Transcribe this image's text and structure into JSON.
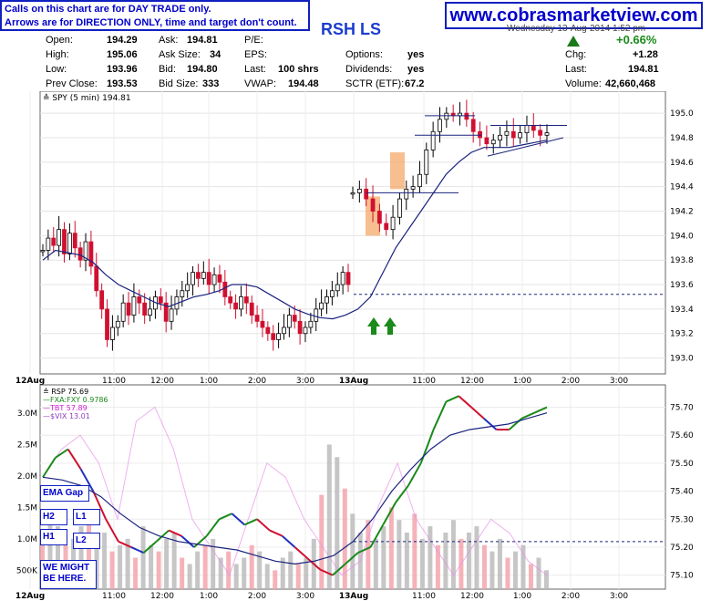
{
  "header": {
    "note_line1": "Calls on this chart are for DAY TRADE only.",
    "note_line2": "Arrows are for DIRECTION ONLY, time and target don't count.",
    "site": "www.cobrasmarketview.com",
    "ticker": "RSH LS",
    "datetime": "Wednesday 13-Aug-2014 1:52 pm"
  },
  "quote": {
    "open_label": "Open:",
    "open": "194.29",
    "high_label": "High:",
    "high": "195.06",
    "low_label": "Low:",
    "low": "193.96",
    "prev_label": "Prev Close:",
    "prev": "193.53",
    "ask_label": "Ask:",
    "ask": "194.81",
    "asksize_label": "Ask Size:",
    "asksize": "34",
    "bid_label": "Bid:",
    "bid": "194.80",
    "bidsize_label": "Bid Size:",
    "bidsize": "333",
    "pe_label": "P/E:",
    "eps_label": "EPS:",
    "last_label": "Last:",
    "last_shares": "100 shrs",
    "vwap_label": "VWAP:",
    "vwap": "194.48",
    "options_label": "Options:",
    "options": "yes",
    "dividends_label": "Dividends:",
    "dividends": "yes",
    "sctr_label": "SCTR (ETF):",
    "sctr": "67.2",
    "pct_change": "+0.66%",
    "chg_label": "Chg:",
    "chg": "+1.28",
    "lastp_label": "Last:",
    "lastp": "194.81",
    "volume_label": "Volume:",
    "volume": "42,660,468"
  },
  "annotations": {
    "ema_gap": "EMA Gap",
    "h2": "H2",
    "l1": "L1",
    "h1": "H1",
    "l2": "L2",
    "might": "WE MIGHT BE HERE."
  },
  "colors": {
    "up": "#1a8a1a",
    "down": "#d01030",
    "ma": "#1a237e",
    "orange": "#f4a460",
    "arrow": "#1a8a1a"
  },
  "chart_data": [
    {
      "type": "line",
      "title": "SPY (5 min) 194.81",
      "ylim": [
        192.9,
        195.15
      ],
      "yticks": [
        "195.0",
        "194.8",
        "194.6",
        "194.4",
        "194.2",
        "194.0",
        "193.8",
        "193.6",
        "193.4",
        "193.2",
        "193.0"
      ],
      "ytick_values": [
        195.0,
        194.8,
        194.6,
        194.4,
        194.2,
        194.0,
        193.8,
        193.6,
        193.4,
        193.2,
        193.0
      ],
      "xticks": [
        "12Aug",
        "11:00",
        "12:00",
        "1:00",
        "2:00",
        "3:00",
        "13Aug",
        "11:00",
        "12:00",
        "1:00",
        "2:00",
        "3:00"
      ],
      "series": [
        {
          "values": [
            193.88,
            193.98,
            193.92,
            194.05,
            193.85,
            194.02,
            193.9,
            193.8,
            193.95,
            193.75,
            193.55,
            193.4,
            193.15,
            193.25,
            193.3,
            193.45,
            193.35,
            193.5,
            193.45,
            193.35,
            193.4,
            193.5,
            193.45,
            193.3,
            193.4,
            193.5,
            193.55,
            193.6,
            193.7,
            193.65,
            193.7,
            193.6,
            193.68,
            193.62,
            193.5,
            193.45,
            193.4,
            193.5,
            193.45,
            193.35,
            193.3,
            193.25,
            193.2,
            193.15,
            193.2,
            193.25,
            193.35,
            193.3,
            193.2,
            193.25,
            193.3,
            193.4,
            193.45,
            193.5,
            193.55,
            193.6,
            193.7,
            193.6
          ]
        },
        {
          "values": [
            194.35,
            194.38,
            194.3,
            194.2,
            194.1,
            194.05,
            194.15,
            194.3,
            194.38,
            194.4,
            194.5,
            194.7,
            194.85,
            194.95,
            195.0,
            194.98,
            195.0,
            194.95,
            194.85,
            194.8,
            194.75,
            194.78,
            194.82,
            194.85,
            194.8,
            194.84,
            194.9,
            194.86,
            194.82,
            194.84
          ]
        }
      ],
      "moving_average": {
        "values": [
          193.8,
          193.88,
          193.86,
          193.84,
          193.78,
          193.68,
          193.6,
          193.55,
          193.5,
          193.45,
          193.42,
          193.46,
          193.5,
          193.52,
          193.55,
          193.6,
          193.6,
          193.58,
          193.52,
          193.46,
          193.4,
          193.36,
          193.33,
          193.32,
          193.35,
          193.4,
          193.5,
          193.7,
          193.9,
          194.05,
          194.2,
          194.35,
          194.5,
          194.6,
          194.68,
          194.72,
          194.72,
          194.72,
          194.74,
          194.76,
          194.78
        ]
      },
      "reference_lines": [
        193.52,
        194.35,
        194.82,
        194.9,
        194.98
      ]
    },
    {
      "type": "bar",
      "title": "RSP 75.69",
      "legend": [
        "RSP 75.69",
        "FXA:FXY 0.9786",
        "TBT 57.89",
        "$VIX 13.01"
      ],
      "yticks_right": [
        "75.70",
        "75.60",
        "75.50",
        "75.40",
        "75.30",
        "75.20",
        "75.10"
      ],
      "ytick_values_right": [
        75.7,
        75.6,
        75.5,
        75.4,
        75.3,
        75.2,
        75.1
      ],
      "ylim_right": [
        75.05,
        75.78
      ],
      "yticks_left": [
        "3.0M",
        "2.5M",
        "2.0M",
        "1.5M",
        "1.0M",
        "500K"
      ],
      "ytick_values_left": [
        3000000,
        2500000,
        2000000,
        1500000,
        1000000,
        500000
      ],
      "ylim_left": [
        200000,
        3450000
      ],
      "xticks": [
        "12Aug",
        "11:00",
        "12:00",
        "1:00",
        "2:00",
        "3:00",
        "13Aug",
        "11:00",
        "12:00",
        "1:00",
        "2:00",
        "3:00"
      ],
      "volume": [
        1100000,
        1400000,
        1200000,
        900000,
        1000000,
        1200000,
        1300000,
        950000,
        1100000,
        800000,
        900000,
        1000000,
        700000,
        1200000,
        900000,
        800000,
        1000000,
        1100000,
        700000,
        600000,
        800000,
        900000,
        1000000,
        700000,
        800000,
        600000,
        700000,
        900000,
        800000,
        600000,
        500000,
        700000,
        800000,
        600000,
        700000,
        1000000,
        1700000,
        2500000,
        2300000,
        1800000,
        1400000,
        1100000,
        1300000,
        1000000,
        1200000,
        1500000,
        1300000,
        1100000,
        1400000,
        1000000,
        1200000,
        900000,
        1100000,
        1300000,
        1000000,
        1100000,
        1200000,
        900000,
        800000,
        1000000,
        700000,
        800000,
        900000,
        600000,
        700000,
        500000
      ],
      "rsp_values": [
        75.45,
        75.52,
        75.55,
        75.48,
        75.4,
        75.3,
        75.22,
        75.2,
        75.18,
        75.22,
        75.26,
        75.24,
        75.2,
        75.24,
        75.3,
        75.32,
        75.28,
        75.3,
        75.26,
        75.24,
        75.2,
        75.16,
        75.12,
        75.1,
        75.14,
        75.18,
        75.2,
        75.28,
        75.36,
        75.42,
        75.5,
        75.62,
        75.72,
        75.74,
        75.7,
        75.66,
        75.62,
        75.62,
        75.66,
        75.68,
        75.7
      ],
      "ma_values": [
        75.45,
        75.44,
        75.42,
        75.38,
        75.32,
        75.27,
        75.24,
        75.22,
        75.21,
        75.2,
        75.19,
        75.17,
        75.15,
        75.14,
        75.15,
        75.17,
        75.22,
        75.3,
        75.4,
        75.48,
        75.55,
        75.6,
        75.62,
        75.63,
        75.64,
        75.66,
        75.68
      ],
      "reference_line": 75.22
    }
  ]
}
